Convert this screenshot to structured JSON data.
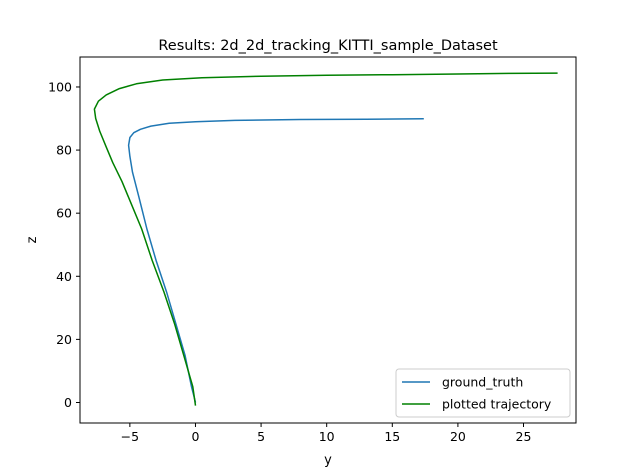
{
  "chart_data": {
    "type": "line",
    "title": "Results: 2d_2d_tracking_KITTI_sample_Dataset",
    "xlabel": "y",
    "ylabel": "z",
    "xlim": [
      -8.8,
      29.0
    ],
    "ylim": [
      -6.5,
      109.5
    ],
    "xticks": [
      -5,
      0,
      5,
      10,
      15,
      20,
      25
    ],
    "yticks": [
      0,
      20,
      40,
      60,
      80,
      100
    ],
    "xtick_labels": [
      "−5",
      "0",
      "5",
      "10",
      "15",
      "20",
      "25"
    ],
    "ytick_labels": [
      "0",
      "20",
      "40",
      "60",
      "80",
      "100"
    ],
    "grid": false,
    "legend_position": "lower right",
    "series": [
      {
        "name": "ground_truth",
        "color": "#1f77b4",
        "x": [
          0.0,
          -0.3,
          -0.8,
          -1.5,
          -2.2,
          -3.0,
          -3.7,
          -4.3,
          -4.8,
          -5.0,
          -5.1,
          -5.0,
          -4.7,
          -4.2,
          -3.4,
          -2.0,
          0.0,
          3.0,
          8.0,
          13.0,
          17.4
        ],
        "y": [
          0,
          5,
          15,
          25,
          35,
          45,
          55,
          65,
          73,
          78,
          81.5,
          84,
          85.5,
          86.6,
          87.6,
          88.5,
          89.0,
          89.4,
          89.7,
          89.8,
          89.9
        ]
      },
      {
        "name": "plotted trajectory",
        "color": "#008000",
        "x": [
          0.0,
          -0.2,
          -0.9,
          -1.6,
          -2.4,
          -3.3,
          -4.1,
          -4.9,
          -5.6,
          -6.3,
          -6.8,
          -7.3,
          -7.6,
          -7.7,
          -7.4,
          -6.8,
          -5.8,
          -4.5,
          -2.5,
          0.5,
          5.0,
          10.0,
          15.0,
          20.0,
          24.0,
          27.6
        ],
        "y": [
          -1,
          5,
          15,
          25,
          35,
          45,
          55,
          63,
          70,
          76,
          81,
          86,
          90,
          93,
          95.5,
          97.5,
          99.5,
          101,
          102.2,
          102.9,
          103.4,
          103.7,
          103.9,
          104.1,
          104.3,
          104.4
        ]
      }
    ]
  }
}
